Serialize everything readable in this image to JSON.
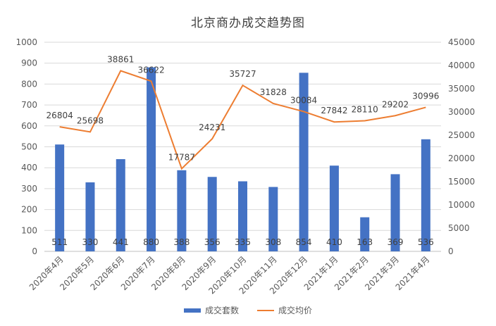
{
  "chart_data": {
    "type": "bar",
    "title": "北京商办成交趋势图",
    "categories": [
      "2020年4月",
      "2020年5月",
      "2020年6月",
      "2020年7月",
      "2020年8月",
      "2020年9月",
      "2020年10月",
      "2020年11月",
      "2020年12月",
      "2021年1月",
      "2021年2月",
      "2021年3月",
      "2021年4月"
    ],
    "series": [
      {
        "name": "成交套数",
        "type": "bar",
        "axis": "left",
        "color": "#4472C4",
        "values": [
          511,
          330,
          441,
          880,
          388,
          356,
          335,
          308,
          854,
          410,
          163,
          369,
          536
        ]
      },
      {
        "name": "成交均价",
        "type": "line",
        "axis": "right",
        "color": "#ED7D31",
        "values": [
          26804,
          25698,
          38861,
          36622,
          17787,
          24231,
          35727,
          31828,
          30084,
          27842,
          28110,
          29202,
          30996
        ]
      }
    ],
    "y_left": {
      "min": 0,
      "max": 1000,
      "ticks": [
        0,
        100,
        200,
        300,
        400,
        500,
        600,
        700,
        800,
        900,
        1000
      ]
    },
    "y_right": {
      "min": 0,
      "max": 45000,
      "ticks": [
        0,
        5000,
        10000,
        15000,
        20000,
        25000,
        30000,
        35000,
        40000,
        45000
      ]
    },
    "grid": true,
    "legend_position": "bottom"
  }
}
